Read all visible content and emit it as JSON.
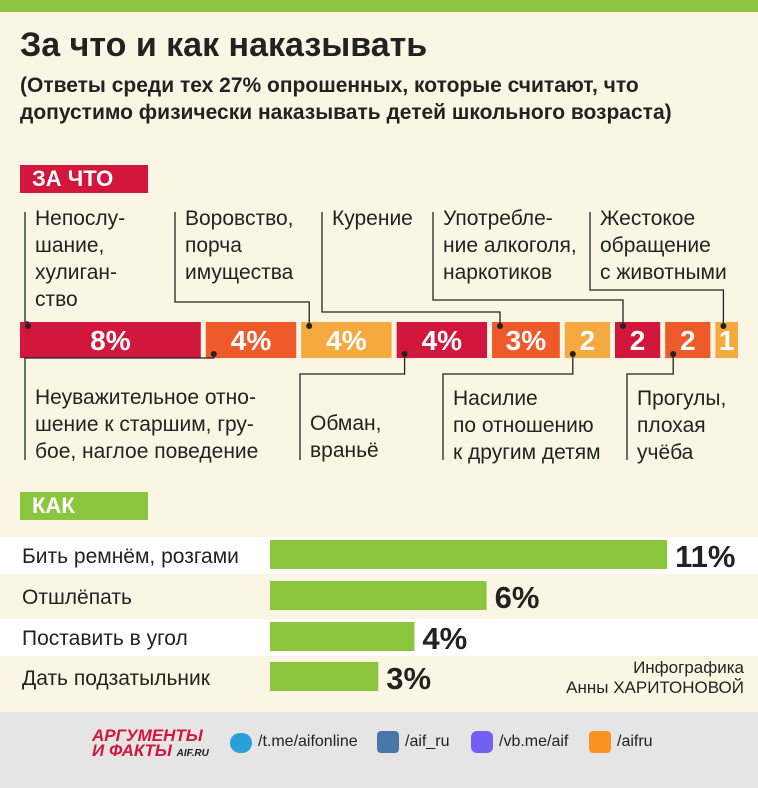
{
  "title": "За что и как наказывать",
  "subtitle": "(Ответы среди тех 27% опрошенных, которые считают, что допустимо физически наказывать детей школьного возраста)",
  "chart_data": [
    {
      "type": "segments",
      "title": "ЗА ЧТО",
      "categories": [
        "Непослу-\nшание,\nхулиган-\nство",
        "Неуважительное отно-\nшение к старшим, гру-\nбое, наглое поведение",
        "Воровство,\nпорча\nимущества",
        "Обман,\nвраньё",
        "Курение",
        "Насилие\nпо отношению\nк другим детям",
        "Употребле-\nние алкоголя,\nнаркотиков",
        "Прогулы,\nплохая\nучёба",
        "Жестокое\nобращение\nс животными"
      ],
      "values": [
        8,
        4,
        4,
        4,
        3,
        2,
        2,
        2,
        1
      ],
      "value_labels": [
        "8%",
        "4%",
        "4%",
        "4%",
        "3%",
        "2",
        "2",
        "2",
        "1"
      ],
      "colors": [
        "#d2163c",
        "#ee5a2a",
        "#f6a93f",
        "#d2163c",
        "#ee5a2a",
        "#f6a93f",
        "#d2163c",
        "#ee5a2a",
        "#f6a93f"
      ]
    },
    {
      "type": "hbar",
      "title": "КАК",
      "categories": [
        "Бить ремнём, розгами",
        "Отшлёпать",
        "Поставить в угол",
        "Дать подзатыльник"
      ],
      "values": [
        11,
        6,
        4,
        3
      ],
      "value_labels": [
        "11%",
        "6%",
        "4%",
        "3%"
      ],
      "color": "#8cc63f"
    }
  ],
  "credit": "Инфографика\nАнны ХАРИТОНОВОЙ",
  "footer": {
    "logo": [
      "АРГУМЕНТЫ",
      "И ФАКТЫ",
      "AIF.RU"
    ],
    "links": [
      "/t.me/aifonline",
      "/aif_ru",
      "/vb.me/aif",
      "/aifru"
    ]
  }
}
